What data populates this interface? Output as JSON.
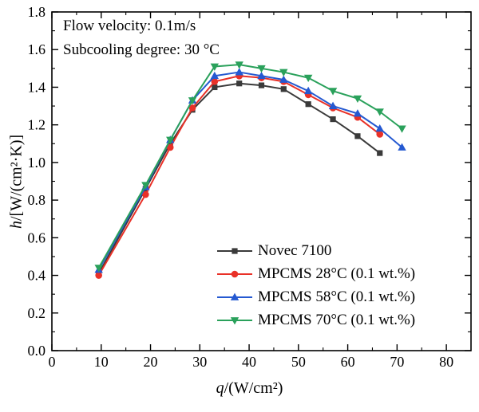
{
  "chart_data": {
    "type": "line",
    "title": "",
    "xlabel_italic": "q",
    "xlabel_rest": "/(W/cm²)",
    "ylabel_italic": "h",
    "ylabel_rest": "/[W/(cm²·K)]",
    "xlim": [
      0,
      85
    ],
    "ylim": [
      0.0,
      1.8
    ],
    "x_major_ticks": [
      0,
      10,
      20,
      30,
      40,
      50,
      60,
      70,
      80
    ],
    "x_minor_ticks": [
      5,
      15,
      25,
      35,
      45,
      55,
      65,
      75
    ],
    "y_major_ticks": [
      0.0,
      0.2,
      0.4,
      0.6,
      0.8,
      1.0,
      1.2,
      1.4,
      1.6,
      1.8
    ],
    "y_minor_ticks": [
      0.1,
      0.3,
      0.5,
      0.7,
      0.9,
      1.1,
      1.3,
      1.5,
      1.7
    ],
    "grid": false,
    "legend_position": "inside-lower-right",
    "axis_color": "#000000",
    "annotations": [
      "Flow velocity: 0.1m/s",
      "Subcooling degree: 30 °C"
    ],
    "series": [
      {
        "name": "Novec 7100",
        "color": "#3a3a3a",
        "marker": "square",
        "x": [
          9.5,
          19,
          24,
          28.5,
          33,
          38,
          42.5,
          47,
          52,
          57,
          62,
          66.5
        ],
        "y": [
          0.41,
          0.86,
          1.1,
          1.28,
          1.4,
          1.42,
          1.41,
          1.39,
          1.31,
          1.23,
          1.14,
          1.05
        ]
      },
      {
        "name": "MPCMS 28°C (0.1 wt.%)",
        "color": "#e93128",
        "marker": "circle",
        "x": [
          9.5,
          19,
          24,
          28.5,
          33,
          38,
          42.5,
          47,
          52,
          57,
          62,
          66.5
        ],
        "y": [
          0.4,
          0.83,
          1.08,
          1.29,
          1.43,
          1.46,
          1.45,
          1.43,
          1.36,
          1.29,
          1.24,
          1.15
        ]
      },
      {
        "name": "MPCMS 58°C (0.1 wt.%)",
        "color": "#2559d1",
        "marker": "triangle-up",
        "x": [
          9.5,
          19,
          24,
          28.5,
          33,
          38,
          42.5,
          47,
          52,
          57,
          62,
          66.5,
          71
        ],
        "y": [
          0.43,
          0.87,
          1.12,
          1.33,
          1.46,
          1.48,
          1.46,
          1.44,
          1.38,
          1.3,
          1.26,
          1.18,
          1.08
        ]
      },
      {
        "name": "MPCMS 70°C (0.1 wt.%)",
        "color": "#2aa15b",
        "marker": "triangle-down",
        "x": [
          9.5,
          19,
          24,
          28.5,
          33,
          38,
          42.5,
          47,
          52,
          57,
          62,
          66.5,
          71
        ],
        "y": [
          0.44,
          0.88,
          1.12,
          1.33,
          1.51,
          1.52,
          1.5,
          1.48,
          1.45,
          1.38,
          1.34,
          1.27,
          1.18
        ]
      }
    ]
  }
}
